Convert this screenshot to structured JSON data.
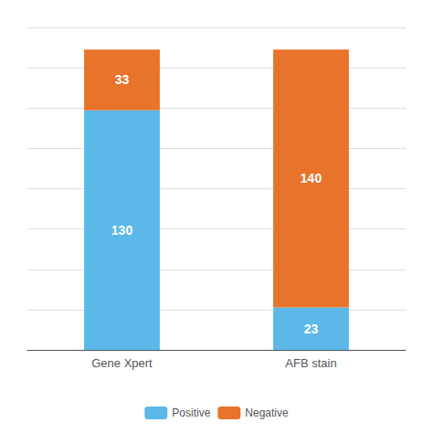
{
  "chart_data": {
    "type": "bar",
    "categories": [
      "Gene Xpert",
      "AFB stain"
    ],
    "series": [
      {
        "name": "Positive",
        "color": "#5BB8E8",
        "values": [
          130,
          23
        ]
      },
      {
        "name": "Negative",
        "color": "#E8732A",
        "values": [
          33,
          140
        ]
      }
    ],
    "stacked": true,
    "data_labels": true,
    "ylim": [
      0,
      175
    ],
    "yticks": [
      0,
      21.875,
      43.75,
      65.625,
      87.5,
      109.375,
      131.25,
      153.125,
      175
    ],
    "grid": true,
    "tick_labels": "x",
    "legend": "bottom"
  }
}
